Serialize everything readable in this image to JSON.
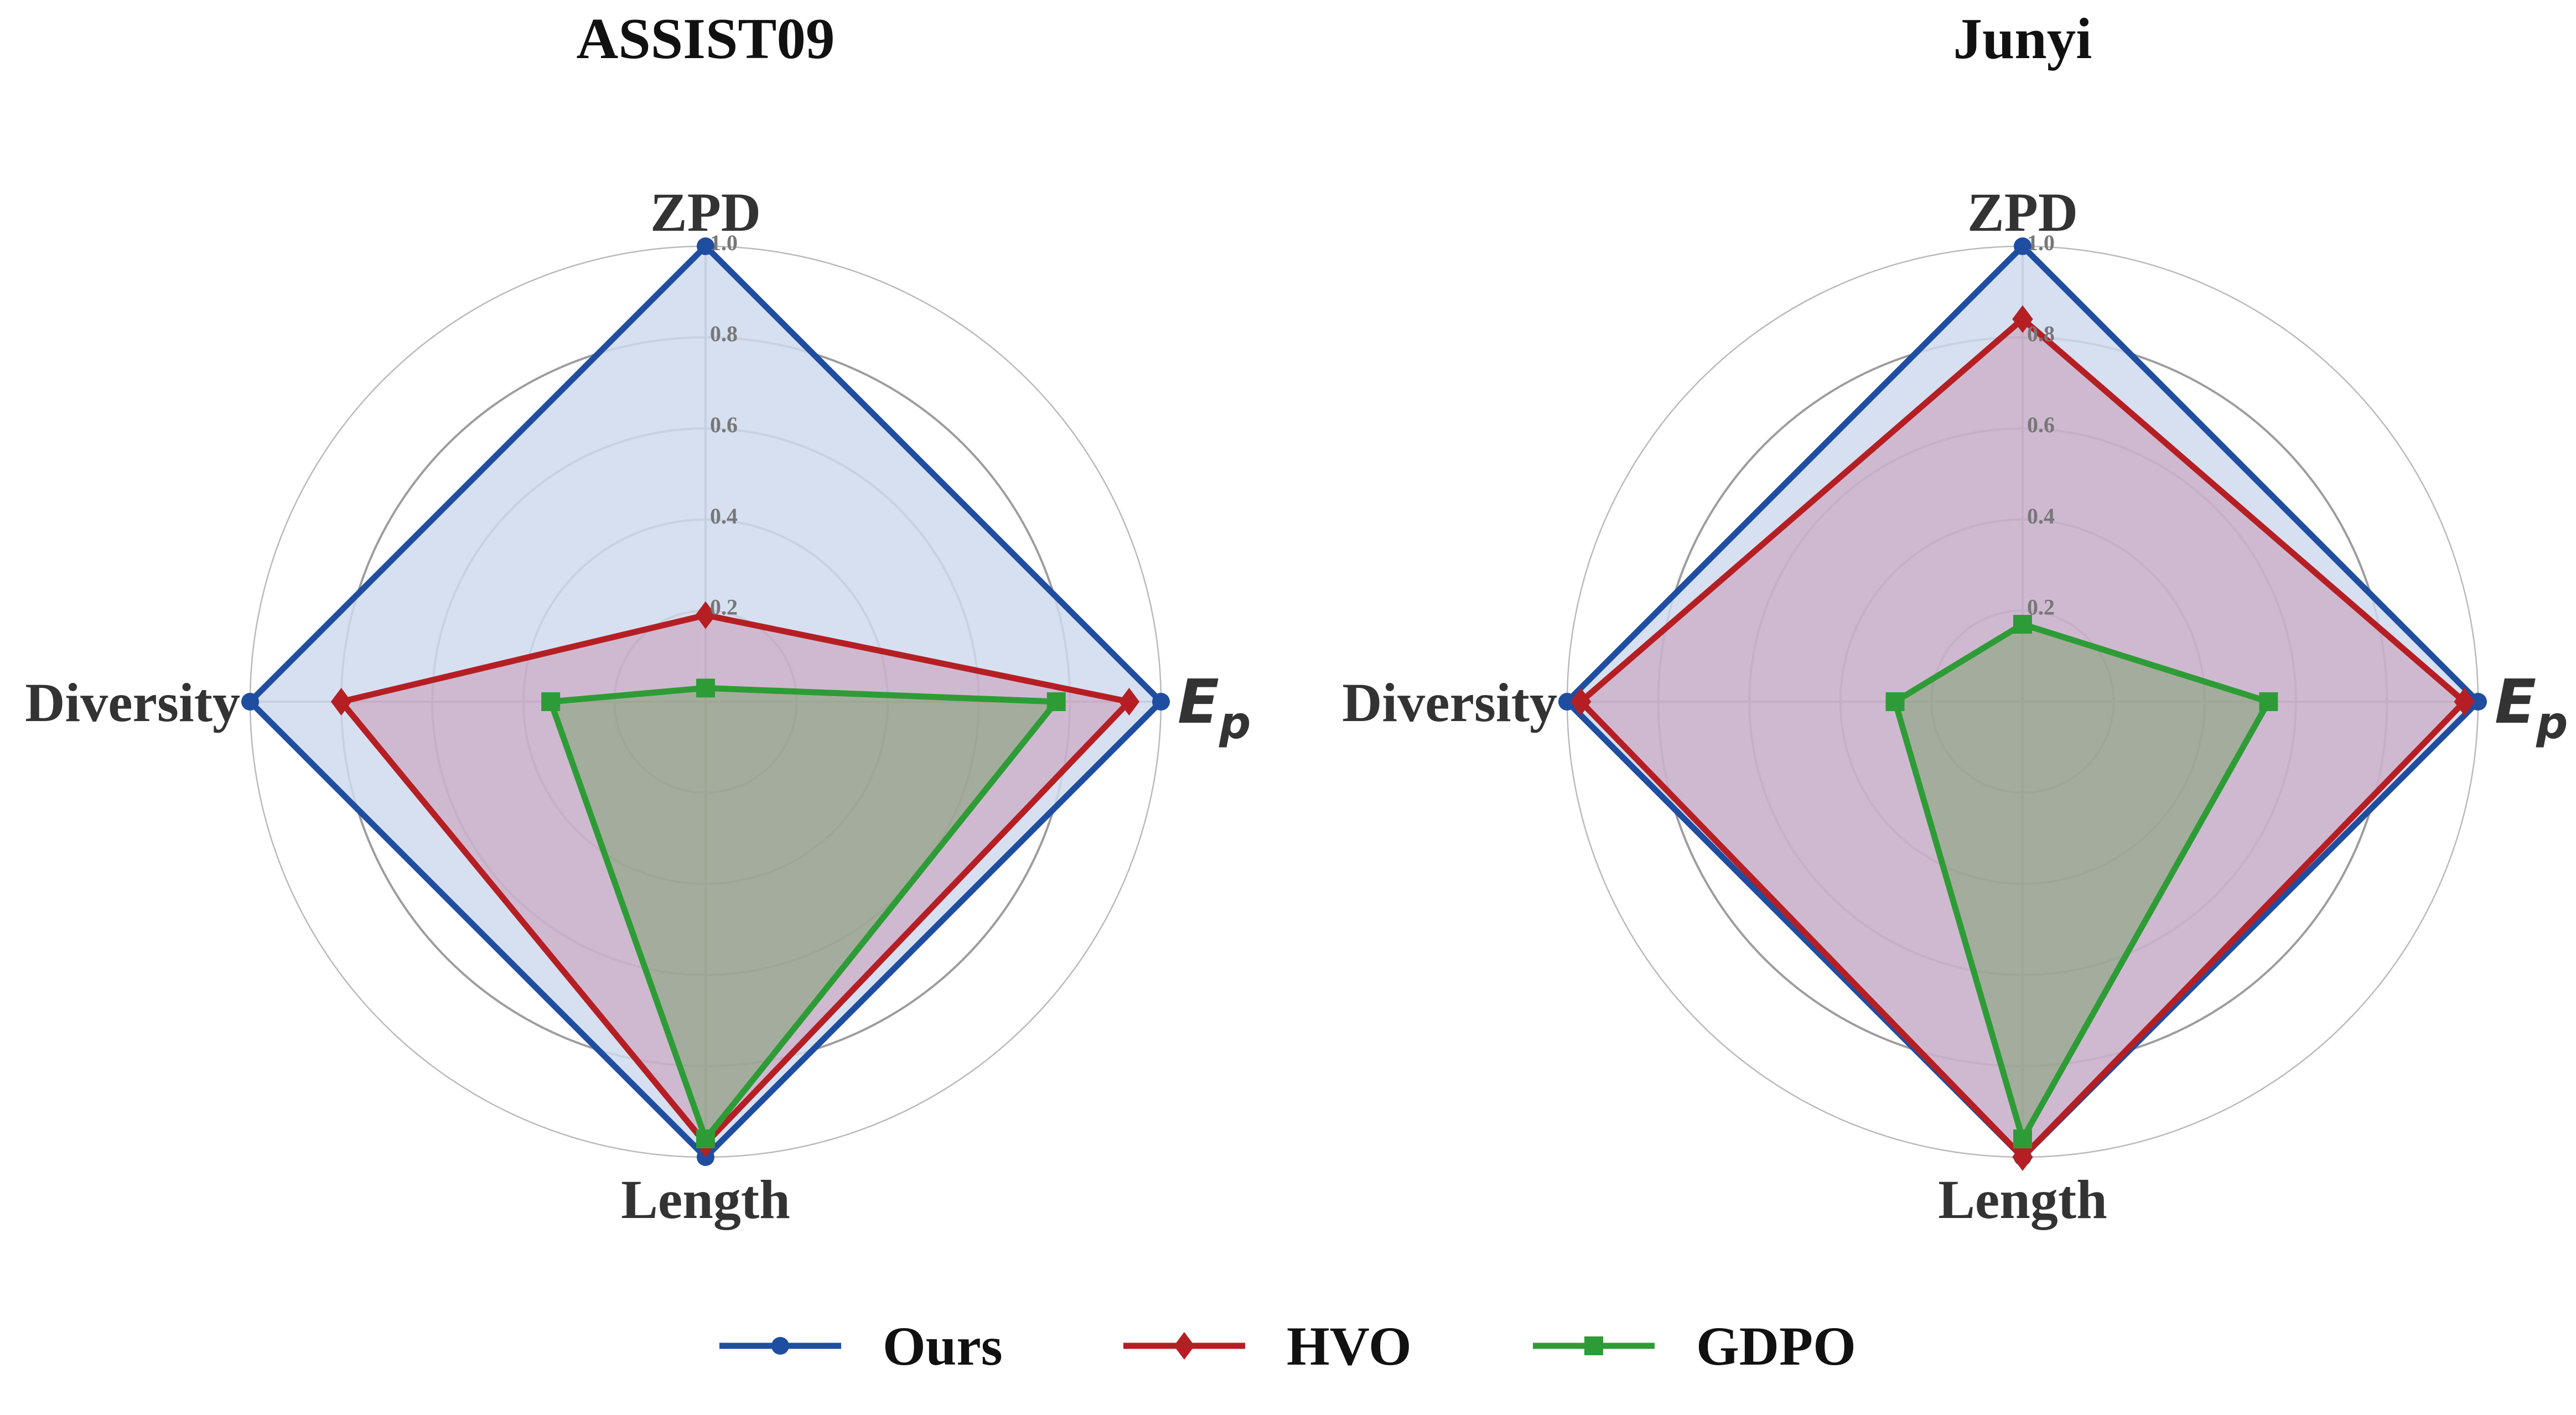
{
  "chart_data": [
    {
      "type": "radar",
      "title": "ASSIST09",
      "axes": [
        "ZPD",
        "Ep",
        "Length",
        "Diversity"
      ],
      "axis_display": [
        {
          "main": "ZPD",
          "sub": ""
        },
        {
          "main": "E",
          "sub": "p"
        },
        {
          "main": "Length",
          "sub": ""
        },
        {
          "main": "Diversity",
          "sub": ""
        }
      ],
      "rlim": [
        0,
        1.0
      ],
      "rticks": [
        "0.2",
        "0.4",
        "0.6",
        "0.8",
        "1.0"
      ],
      "rtick_values": [
        0.2,
        0.4,
        0.6,
        0.8,
        1.0
      ],
      "series": [
        {
          "name": "Ours",
          "values": [
            1.0,
            1.0,
            1.0,
            1.0
          ]
        },
        {
          "name": "HVO",
          "values": [
            0.19,
            0.93,
            0.97,
            0.8
          ]
        },
        {
          "name": "GDPO",
          "values": [
            0.03,
            0.77,
            0.96,
            0.34
          ]
        }
      ]
    },
    {
      "type": "radar",
      "title": "Junyi",
      "axes": [
        "ZPD",
        "Ep",
        "Length",
        "Diversity"
      ],
      "axis_display": [
        {
          "main": "ZPD",
          "sub": ""
        },
        {
          "main": "E",
          "sub": "p"
        },
        {
          "main": "Length",
          "sub": ""
        },
        {
          "main": "Diversity",
          "sub": ""
        }
      ],
      "rlim": [
        0,
        1.0
      ],
      "rticks": [
        "0.2",
        "0.4",
        "0.6",
        "0.8",
        "1.0"
      ],
      "rtick_values": [
        0.2,
        0.4,
        0.6,
        0.8,
        1.0
      ],
      "series": [
        {
          "name": "Ours",
          "values": [
            1.0,
            1.0,
            1.0,
            1.0
          ]
        },
        {
          "name": "HVO",
          "values": [
            0.84,
            0.97,
            1.0,
            0.97
          ]
        },
        {
          "name": "GDPO",
          "values": [
            0.17,
            0.54,
            0.96,
            0.28
          ]
        }
      ]
    }
  ],
  "legend": [
    {
      "name": "Ours",
      "color": "#1f4ea1",
      "marker": "circle"
    },
    {
      "name": "HVO",
      "color": "#b51f24",
      "marker": "diamond"
    },
    {
      "name": "GDPO",
      "color": "#2e9c36",
      "marker": "square"
    }
  ],
  "colors": {
    "Ours": "#1f4ea1",
    "HVO": "#b51f24",
    "GDPO": "#2e9c36",
    "Ours_fill": "#cfdaee",
    "HVO_fill": "#c4789a",
    "GDPO_fill": "#5f9a4a",
    "grid": "#8c8c8c",
    "text": "#333333",
    "tick": "#777777"
  }
}
